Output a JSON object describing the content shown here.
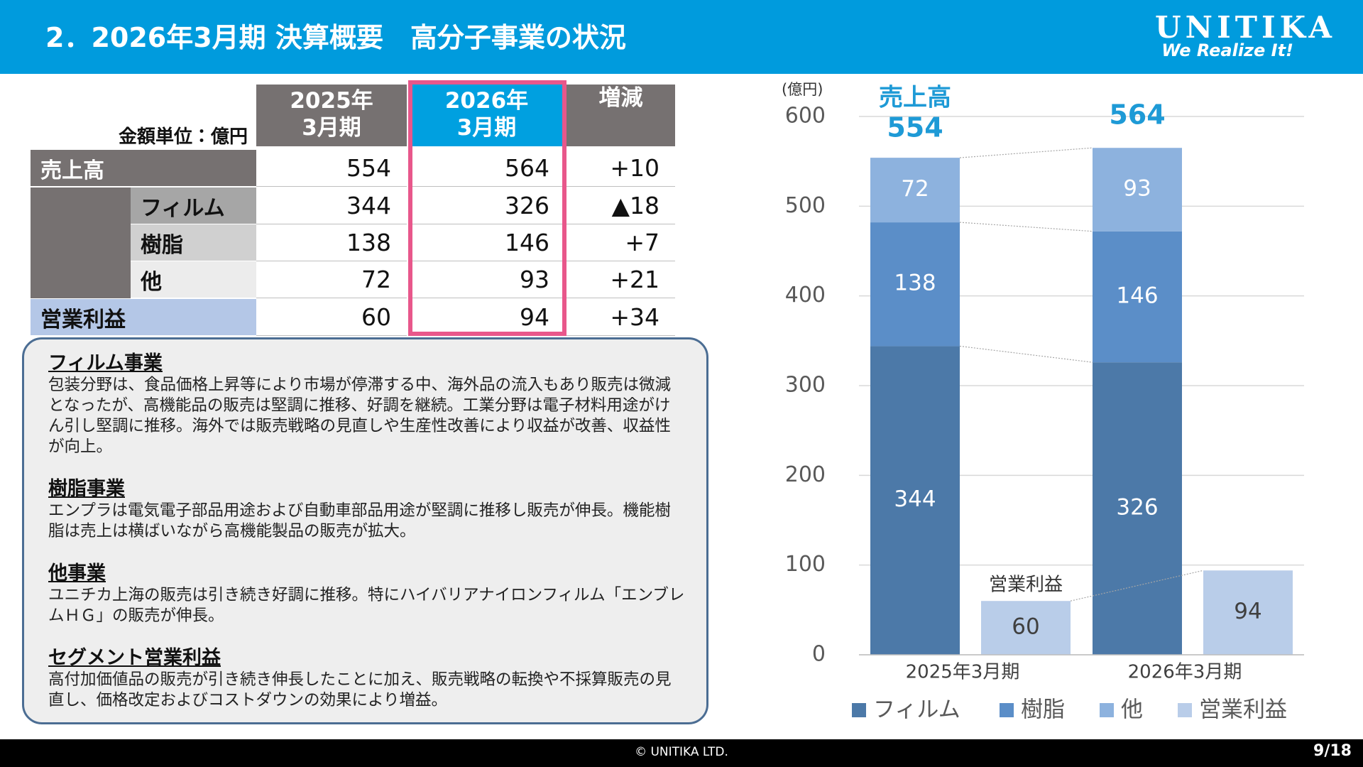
{
  "header": {
    "title": "2．2026年3月期 決算概要　高分子事業の状況",
    "logo": "UNITIKA",
    "tagline": "We Realize It!"
  },
  "table": {
    "unit": "金額単位：億円",
    "columns": [
      [
        "2025年",
        "3月期"
      ],
      [
        "2026年",
        "3月期"
      ],
      [
        "増減"
      ]
    ],
    "rows": [
      {
        "label": "売上高",
        "values": [
          554,
          564
        ],
        "change": "+10"
      },
      {
        "label": "フィルム",
        "values": [
          344,
          326
        ],
        "change": "▲18"
      },
      {
        "label": "樹脂",
        "values": [
          138,
          146
        ],
        "change": "+7"
      },
      {
        "label": "他",
        "values": [
          72,
          93
        ],
        "change": "+21"
      },
      {
        "label": "営業利益",
        "values": [
          60,
          94
        ],
        "change": "+34"
      }
    ]
  },
  "notes": [
    {
      "heading": "フィルム事業",
      "body": "包装分野は、食品価格上昇等により市場が停滞する中、海外品の流入もあり販売は微減となったが、高機能品の販売は堅調に推移、好調を継続。工業分野は電子材料用途がけん引し堅調に推移。海外では販売戦略の見直しや生産性改善により収益が改善、収益性が向上。"
    },
    {
      "heading": "樹脂事業",
      "body": "エンプラは電気電子部品用途および自動車部品用途が堅調に推移し販売が伸長。機能樹脂は売上は横ばいながら高機能製品の販売が拡大。"
    },
    {
      "heading": "他事業",
      "body": "ユニチカ上海の販売は引き続き好調に推移。特にハイバリアナイロンフィルム「エンブレムＨＧ」の販売が伸長。"
    },
    {
      "heading": "セグメント営業利益",
      "body": "高付加価値品の販売が引き続き伸長したことに加え、販売戦略の転換や不採算販売の見直し、価格改定およびコストダウンの効果により増益。"
    }
  ],
  "chart_data": {
    "type": "bar",
    "unit_label": "(億円)",
    "categories": [
      "2025年3月期",
      "2026年3月期"
    ],
    "series": [
      {
        "name": "フィルム",
        "color": "#4c79a8",
        "stack": "sales",
        "values": [
          344,
          326
        ]
      },
      {
        "name": "樹脂",
        "color": "#5b8ec8",
        "stack": "sales",
        "values": [
          138,
          146
        ]
      },
      {
        "name": "他",
        "color": "#8db2de",
        "stack": "sales",
        "values": [
          72,
          93
        ]
      },
      {
        "name": "営業利益",
        "color": "#b9cde9",
        "stack": "profit",
        "values": [
          60,
          94
        ]
      }
    ],
    "totals": {
      "label": "売上高",
      "values": [
        554,
        564
      ]
    },
    "annotation": "営業利益",
    "ylim": [
      0,
      600
    ],
    "yticks": [
      0,
      100,
      200,
      300,
      400,
      500,
      600
    ],
    "grid": true
  },
  "footer": {
    "copyright": "© UNITIKA LTD.",
    "page": "9/18"
  }
}
